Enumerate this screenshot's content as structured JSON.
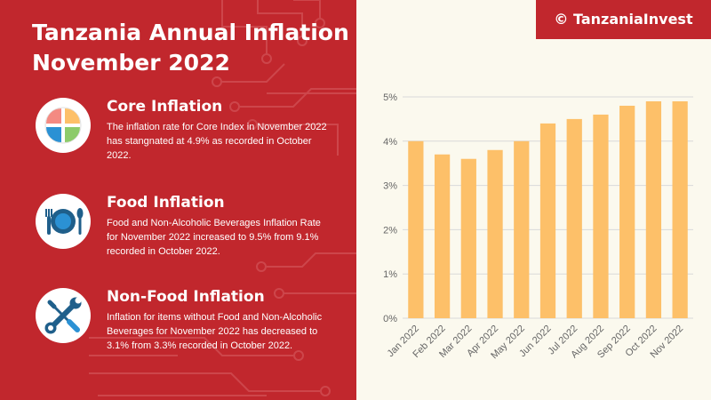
{
  "title_lines": [
    "Tanzania Annual Inflation",
    "November 2022"
  ],
  "copyright": "© TanzaniaInvest",
  "sections": [
    {
      "title": "Core Inflation",
      "text": "The inflation rate for Core Index in November 2022 has stangnated at 4.9% as recorded in October 2022.",
      "icon": "pie-chart-icon"
    },
    {
      "title": "Food Inflation",
      "text": "Food and Non-Alcoholic Beverages Inflation Rate for November 2022 increased to 9.5% from 9.1% recorded in October 2022.",
      "icon": "plate-cutlery-icon"
    },
    {
      "title": "Non-Food Inflation",
      "text": "Inflation for items without Food and Non-Alcoholic Beverages for November 2022 has decreased to 3.1% from 3.3% recorded in October 2022.",
      "icon": "wrench-screwdriver-icon"
    }
  ],
  "colors": {
    "panel": "#c1272d",
    "background": "#fbf9ee",
    "bar": "#fdc069",
    "grid": "#d9d9d9"
  },
  "chart_data": {
    "type": "bar",
    "categories": [
      "Jan 2022",
      "Feb 2022",
      "Mar 2022",
      "Apr 2022",
      "May 2022",
      "Jun 2022",
      "Jul 2022",
      "Aug 2022",
      "Sep 2022",
      "Oct 2022",
      "Nov 2022"
    ],
    "values": [
      4.0,
      3.7,
      3.6,
      3.8,
      4.0,
      4.4,
      4.5,
      4.6,
      4.8,
      4.9,
      4.9
    ],
    "ylim": [
      0,
      5
    ],
    "y_ticks": [
      0,
      1,
      2,
      3,
      4,
      5
    ],
    "y_tick_labels": [
      "0%",
      "1%",
      "2%",
      "3%",
      "4%",
      "5%"
    ],
    "grid": true,
    "legend": "none"
  }
}
